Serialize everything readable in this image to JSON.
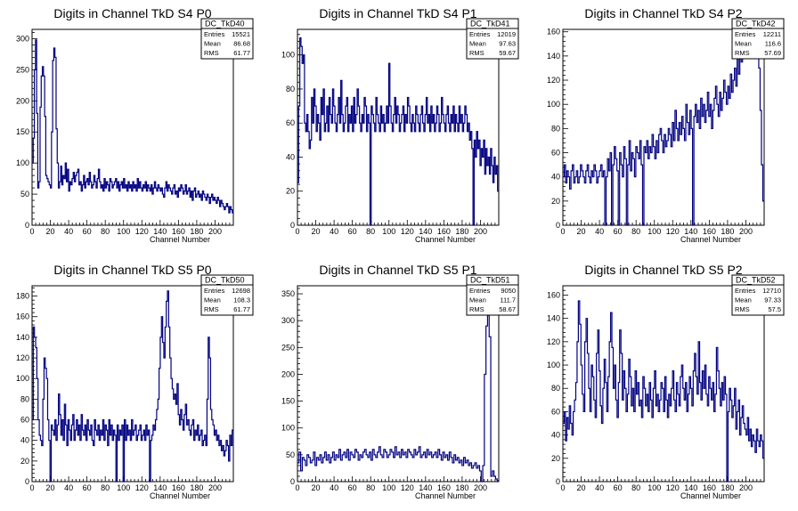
{
  "chart_data": [
    {
      "id": "p00",
      "type": "step",
      "title": "Digits in Channel TkD S4 P0",
      "xlabel": "Channel Number",
      "ylabel": "",
      "xlim": [
        0,
        220
      ],
      "ylim": [
        0,
        315
      ],
      "xticks": [
        0,
        20,
        40,
        60,
        80,
        100,
        120,
        140,
        160,
        180,
        200
      ],
      "yticks": [
        0,
        50,
        100,
        150,
        200,
        250,
        300
      ],
      "stats": {
        "name": "DC_TkD40",
        "rows": [
          {
            "label": "Entries",
            "value": "15521"
          },
          {
            "label": "Mean",
            "value": "86.68"
          },
          {
            "label": "RMS",
            "value": "61.77"
          }
        ]
      },
      "values": [
        100,
        140,
        250,
        298,
        180,
        60,
        70,
        190,
        240,
        255,
        240,
        175,
        80,
        75,
        70,
        65,
        60,
        150,
        265,
        285,
        270,
        155,
        100,
        60,
        70,
        95,
        65,
        80,
        75,
        100,
        70,
        90,
        55,
        70,
        65,
        75,
        85,
        70,
        80,
        85,
        90,
        65,
        70,
        55,
        65,
        80,
        60,
        70,
        75,
        65,
        85,
        70,
        60,
        65,
        80,
        70,
        60,
        75,
        90,
        70,
        60,
        65,
        55,
        75,
        60,
        70,
        65,
        55,
        75,
        70,
        60,
        65,
        70,
        75,
        60,
        70,
        55,
        65,
        70,
        60,
        75,
        60,
        65,
        55,
        70,
        60,
        65,
        55,
        70,
        60,
        65,
        55,
        75,
        60,
        70,
        60,
        55,
        65,
        60,
        70,
        55,
        65,
        60,
        55,
        65,
        50,
        60,
        70,
        60,
        55,
        65,
        60,
        55,
        60,
        50,
        45,
        60,
        70,
        55,
        65,
        60,
        55,
        50,
        60,
        65,
        50,
        55,
        45,
        60,
        55,
        65,
        60,
        50,
        55,
        65,
        50,
        55,
        60,
        45,
        55,
        40,
        55,
        60,
        45,
        50,
        55,
        45,
        50,
        40,
        55,
        50,
        45,
        40,
        50,
        45,
        35,
        45,
        50,
        40,
        45,
        40,
        35,
        45,
        40,
        30,
        40,
        35,
        30,
        25,
        30,
        35,
        30,
        20,
        30,
        25,
        20
      ]
    },
    {
      "id": "p01",
      "type": "step",
      "title": "Digits in Channel TkD S4 P1",
      "xlabel": "Channel Number",
      "ylabel": "",
      "xlim": [
        0,
        220
      ],
      "ylim": [
        0,
        115
      ],
      "xticks": [
        0,
        20,
        40,
        60,
        80,
        100,
        120,
        140,
        160,
        180,
        200
      ],
      "yticks": [
        0,
        20,
        40,
        60,
        80,
        100
      ],
      "stats": {
        "name": "DC_TkD41",
        "rows": [
          {
            "label": "Entries",
            "value": "12019"
          },
          {
            "label": "Mean",
            "value": "97.63"
          },
          {
            "label": "RMS",
            "value": "59.67"
          }
        ]
      },
      "values": [
        25,
        70,
        110,
        105,
        95,
        100,
        60,
        55,
        65,
        55,
        45,
        50,
        75,
        60,
        80,
        70,
        55,
        65,
        60,
        50,
        75,
        65,
        80,
        55,
        60,
        70,
        55,
        75,
        65,
        60,
        80,
        70,
        60,
        55,
        65,
        75,
        60,
        85,
        65,
        55,
        60,
        70,
        75,
        55,
        65,
        60,
        70,
        55,
        75,
        60,
        65,
        80,
        70,
        60,
        55,
        65,
        60,
        75,
        70,
        55,
        65,
        60,
        0,
        70,
        65,
        60,
        55,
        75,
        65,
        60,
        55,
        70,
        60,
        65,
        55,
        60,
        70,
        60,
        95,
        70,
        60,
        55,
        65,
        75,
        60,
        70,
        65,
        55,
        60,
        65,
        70,
        55,
        65,
        60,
        75,
        70,
        60,
        55,
        65,
        60,
        55,
        70,
        65,
        60,
        55,
        65,
        70,
        60,
        55,
        65,
        75,
        60,
        65,
        55,
        70,
        60,
        65,
        55,
        60,
        70,
        65,
        55,
        60,
        75,
        65,
        60,
        55,
        65,
        70,
        60,
        55,
        65,
        60,
        70,
        55,
        65,
        60,
        55,
        70,
        60,
        65,
        55,
        60,
        70,
        65,
        55,
        60,
        50,
        55,
        45,
        0,
        50,
        40,
        55,
        45,
        50,
        35,
        45,
        40,
        50,
        30,
        45,
        35,
        40,
        30,
        45,
        35,
        25,
        40,
        30,
        35,
        20
      ]
    },
    {
      "id": "p02",
      "type": "step",
      "title": "Digits in Channel TkD S4 P2",
      "xlabel": "Channel Number",
      "ylabel": "",
      "xlim": [
        0,
        220
      ],
      "ylim": [
        0,
        162
      ],
      "xticks": [
        0,
        20,
        40,
        60,
        80,
        100,
        120,
        140,
        160,
        180,
        200
      ],
      "yticks": [
        0,
        20,
        40,
        60,
        80,
        100,
        120,
        140,
        160
      ],
      "stats": {
        "name": "DC_TkD42",
        "rows": [
          {
            "label": "Entries",
            "value": "12211"
          },
          {
            "label": "Mean",
            "value": "116.6"
          },
          {
            "label": "RMS",
            "value": "57.69"
          }
        ]
      },
      "values": [
        40,
        50,
        35,
        45,
        40,
        30,
        45,
        50,
        35,
        40,
        45,
        35,
        40,
        50,
        45,
        40,
        35,
        45,
        50,
        40,
        35,
        45,
        40,
        50,
        45,
        35,
        40,
        45,
        50,
        40,
        45,
        0,
        40,
        55,
        45,
        60,
        0,
        50,
        65,
        55,
        45,
        0,
        60,
        50,
        40,
        65,
        55,
        0,
        50,
        70,
        45,
        60,
        55,
        40,
        65,
        60,
        55,
        70,
        50,
        0,
        65,
        60,
        70,
        55,
        65,
        60,
        75,
        65,
        55,
        70,
        60,
        75,
        80,
        70,
        60,
        75,
        65,
        70,
        80,
        75,
        65,
        85,
        70,
        95,
        80,
        70,
        85,
        75,
        90,
        80,
        70,
        100,
        85,
        75,
        95,
        80,
        0,
        90,
        100,
        85,
        95,
        80,
        105,
        90,
        100,
        85,
        95,
        110,
        90,
        100,
        80,
        95,
        105,
        115,
        100,
        90,
        110,
        95,
        105,
        120,
        110,
        100,
        115,
        105,
        125,
        110,
        120,
        130,
        115,
        140,
        125,
        150,
        135,
        145,
        155,
        140,
        160,
        150,
        145,
        160,
        155,
        150,
        140,
        160,
        155,
        130,
        95,
        50,
        20
      ]
    },
    {
      "id": "p10",
      "type": "step",
      "title": "Digits in Channel TkD S5 P0",
      "xlabel": "Channel Number",
      "ylabel": "",
      "xlim": [
        0,
        220
      ],
      "ylim": [
        0,
        190
      ],
      "xticks": [
        0,
        20,
        40,
        60,
        80,
        100,
        120,
        140,
        160,
        180,
        200
      ],
      "yticks": [
        0,
        20,
        40,
        60,
        80,
        100,
        120,
        140,
        160,
        180
      ],
      "stats": {
        "name": "DC_TkD50",
        "rows": [
          {
            "label": "Entries",
            "value": "12698"
          },
          {
            "label": "Mean",
            "value": "108.3"
          },
          {
            "label": "RMS",
            "value": "61.77"
          }
        ]
      },
      "values": [
        60,
        150,
        140,
        130,
        100,
        60,
        45,
        40,
        35,
        80,
        120,
        110,
        100,
        60,
        40,
        0,
        55,
        50,
        45,
        60,
        40,
        55,
        85,
        65,
        45,
        60,
        40,
        75,
        55,
        35,
        60,
        50,
        40,
        55,
        65,
        40,
        50,
        60,
        45,
        55,
        40,
        65,
        50,
        45,
        55,
        40,
        60,
        50,
        45,
        55,
        40,
        35,
        60,
        50,
        45,
        55,
        40,
        50,
        45,
        60,
        40,
        55,
        50,
        35,
        60,
        45,
        55,
        40,
        50,
        45,
        0,
        55,
        40,
        50,
        45,
        55,
        0,
        60,
        40,
        55,
        45,
        50,
        40,
        60,
        45,
        50,
        55,
        40,
        45,
        50,
        55,
        40,
        45,
        50,
        40,
        55,
        45,
        50,
        0,
        40,
        45,
        55,
        50,
        60,
        70,
        80,
        110,
        140,
        160,
        135,
        120,
        150,
        175,
        185,
        150,
        120,
        100,
        90,
        80,
        85,
        75,
        95,
        65,
        55,
        70,
        60,
        50,
        65,
        75,
        55,
        60,
        50,
        45,
        55,
        60,
        40,
        50,
        45,
        55,
        40,
        45,
        50,
        35,
        40,
        45,
        35,
        80,
        140,
        120,
        70,
        60,
        55,
        45,
        50,
        40,
        45,
        35,
        40,
        30,
        35,
        25,
        30,
        40,
        35,
        20,
        45,
        35,
        50
      ]
    },
    {
      "id": "p11",
      "type": "step",
      "title": "Digits in Channel TkD S5 P1",
      "xlabel": "Channel Number",
      "ylabel": "",
      "xlim": [
        0,
        220
      ],
      "ylim": [
        0,
        365
      ],
      "xticks": [
        0,
        20,
        40,
        60,
        80,
        100,
        120,
        140,
        160,
        180,
        200
      ],
      "yticks": [
        0,
        50,
        100,
        150,
        200,
        250,
        300,
        350
      ],
      "stats": {
        "name": "DC_TkD51",
        "rows": [
          {
            "label": "Entries",
            "value": "9050"
          },
          {
            "label": "Mean",
            "value": "111.7"
          },
          {
            "label": "RMS",
            "value": "58.67"
          }
        ]
      },
      "values": [
        35,
        55,
        20,
        45,
        40,
        30,
        50,
        45,
        35,
        40,
        55,
        30,
        45,
        40,
        50,
        35,
        45,
        55,
        40,
        50,
        35,
        45,
        55,
        40,
        50,
        45,
        60,
        40,
        50,
        55,
        45,
        60,
        40,
        55,
        50,
        45,
        60,
        55,
        40,
        50,
        45,
        55,
        60,
        50,
        45,
        55,
        40,
        60,
        50,
        45,
        55,
        65,
        50,
        45,
        60,
        55,
        45,
        50,
        60,
        55,
        45,
        65,
        50,
        55,
        45,
        60,
        50,
        55,
        45,
        60,
        55,
        50,
        45,
        60,
        50,
        55,
        65,
        45,
        50,
        55,
        45,
        60,
        50,
        55,
        45,
        50,
        55,
        45,
        60,
        50,
        40,
        55,
        45,
        50,
        40,
        55,
        45,
        35,
        50,
        40,
        45,
        35,
        40,
        30,
        45,
        35,
        40,
        30,
        35,
        25,
        30,
        35,
        25,
        30,
        20,
        0,
        30,
        200,
        290,
        310,
        270,
        10,
        20,
        10,
        5,
        2
      ]
    },
    {
      "id": "p12",
      "type": "step",
      "title": "Digits in Channel TkD S5 P2",
      "xlabel": "Channel Number",
      "ylabel": "",
      "xlim": [
        0,
        220
      ],
      "ylim": [
        0,
        168
      ],
      "xticks": [
        0,
        20,
        40,
        60,
        80,
        100,
        120,
        140,
        160,
        180,
        200
      ],
      "yticks": [
        0,
        20,
        40,
        60,
        80,
        100,
        120,
        140,
        160
      ],
      "stats": {
        "name": "DC_TkD52",
        "rows": [
          {
            "label": "Entries",
            "value": "12710"
          },
          {
            "label": "Mean",
            "value": "97.33"
          },
          {
            "label": "RMS",
            "value": "57.5"
          }
        ]
      },
      "values": [
        50,
        60,
        35,
        55,
        45,
        65,
        50,
        40,
        60,
        70,
        85,
        120,
        155,
        135,
        100,
        75,
        60,
        120,
        140,
        110,
        80,
        60,
        100,
        90,
        70,
        55,
        110,
        130,
        95,
        65,
        50,
        80,
        105,
        85,
        60,
        90,
        120,
        145,
        115,
        80,
        100,
        70,
        55,
        85,
        130,
        110,
        70,
        95,
        80,
        60,
        75,
        105,
        90,
        65,
        80,
        60,
        95,
        75,
        85,
        65,
        70,
        55,
        90,
        80,
        65,
        75,
        60,
        85,
        70,
        55,
        80,
        95,
        65,
        75,
        60,
        70,
        85,
        80,
        60,
        90,
        70,
        55,
        75,
        65,
        80,
        95,
        70,
        60,
        85,
        75,
        65,
        90,
        100,
        80,
        70,
        85,
        60,
        75,
        90,
        80,
        65,
        95,
        110,
        90,
        75,
        120,
        85,
        70,
        95,
        80,
        100,
        75,
        65,
        90,
        80,
        70,
        85,
        60,
        75,
        115,
        95,
        80,
        65,
        85,
        70,
        90,
        75,
        0,
        60,
        80,
        70,
        55,
        65,
        80,
        45,
        60,
        70,
        40,
        55,
        65,
        50,
        45,
        40,
        55,
        35,
        45,
        30,
        40,
        35,
        25,
        45,
        35,
        30,
        40,
        35,
        20
      ]
    }
  ]
}
